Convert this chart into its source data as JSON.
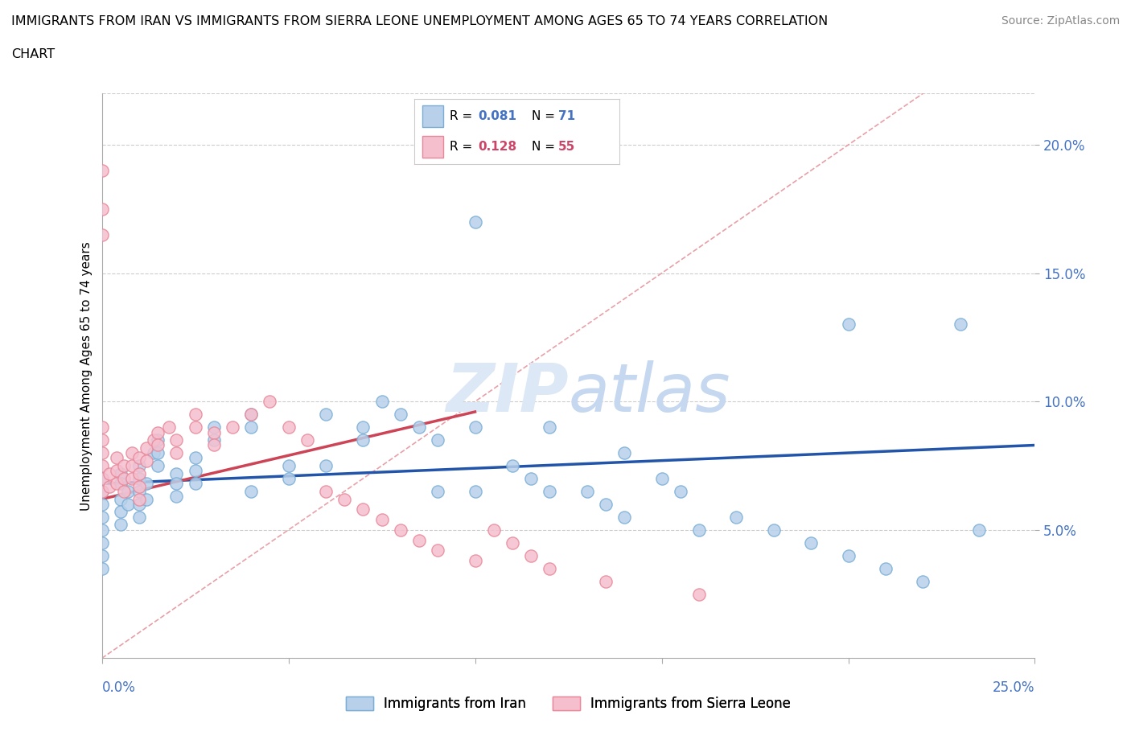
{
  "title_line1": "IMMIGRANTS FROM IRAN VS IMMIGRANTS FROM SIERRA LEONE UNEMPLOYMENT AMONG AGES 65 TO 74 YEARS CORRELATION",
  "title_line2": "CHART",
  "source": "Source: ZipAtlas.com",
  "ylabel": "Unemployment Among Ages 65 to 74 years",
  "xmin": 0.0,
  "xmax": 0.25,
  "ymin": 0.0,
  "ymax": 0.22,
  "yticks": [
    0.05,
    0.1,
    0.15,
    0.2
  ],
  "ytick_labels": [
    "5.0%",
    "10.0%",
    "15.0%",
    "20.0%"
  ],
  "xticks": [
    0.0,
    0.05,
    0.1,
    0.15,
    0.2,
    0.25
  ],
  "watermark": "ZIPatlas",
  "iran_color_face": "#b8d0ea",
  "iran_color_edge": "#7aaed6",
  "sl_color_face": "#f5bfce",
  "sl_color_edge": "#e8889a",
  "iran_line_color": "#2255aa",
  "sl_line_color": "#cc4455",
  "ref_line_color": "#e8a0a8",
  "iran_R": 0.081,
  "iran_N": 71,
  "sl_R": 0.128,
  "sl_N": 55,
  "iran_R_color": "#4472c4",
  "iran_N_color": "#4472c4",
  "sl_R_color": "#cc4466",
  "sl_N_color": "#cc4466",
  "iran_trend_x0": 0.0,
  "iran_trend_x1": 0.25,
  "iran_trend_y0": 0.068,
  "iran_trend_y1": 0.083,
  "sl_trend_x0": 0.0,
  "sl_trend_x1": 0.1,
  "sl_trend_y0": 0.062,
  "sl_trend_y1": 0.096,
  "iran_x": [
    0.0,
    0.0,
    0.0,
    0.0,
    0.0,
    0.0,
    0.0,
    0.0,
    0.005,
    0.005,
    0.005,
    0.005,
    0.005,
    0.007,
    0.007,
    0.01,
    0.01,
    0.01,
    0.01,
    0.01,
    0.012,
    0.012,
    0.014,
    0.015,
    0.015,
    0.015,
    0.02,
    0.02,
    0.02,
    0.025,
    0.025,
    0.025,
    0.03,
    0.03,
    0.04,
    0.04,
    0.04,
    0.05,
    0.05,
    0.06,
    0.06,
    0.07,
    0.07,
    0.075,
    0.08,
    0.085,
    0.09,
    0.09,
    0.1,
    0.1,
    0.11,
    0.115,
    0.12,
    0.13,
    0.135,
    0.14,
    0.15,
    0.155,
    0.16,
    0.17,
    0.18,
    0.19,
    0.2,
    0.21,
    0.22,
    0.23,
    0.235,
    0.1,
    0.12,
    0.14,
    0.2
  ],
  "iran_y": [
    0.07,
    0.065,
    0.06,
    0.055,
    0.05,
    0.045,
    0.04,
    0.035,
    0.072,
    0.068,
    0.062,
    0.057,
    0.052,
    0.065,
    0.06,
    0.075,
    0.07,
    0.065,
    0.06,
    0.055,
    0.068,
    0.062,
    0.08,
    0.085,
    0.08,
    0.075,
    0.072,
    0.068,
    0.063,
    0.078,
    0.073,
    0.068,
    0.09,
    0.085,
    0.095,
    0.09,
    0.065,
    0.075,
    0.07,
    0.095,
    0.075,
    0.09,
    0.085,
    0.1,
    0.095,
    0.09,
    0.085,
    0.065,
    0.09,
    0.065,
    0.075,
    0.07,
    0.065,
    0.065,
    0.06,
    0.055,
    0.07,
    0.065,
    0.05,
    0.055,
    0.05,
    0.045,
    0.04,
    0.035,
    0.03,
    0.13,
    0.05,
    0.17,
    0.09,
    0.08,
    0.13
  ],
  "sl_x": [
    0.0,
    0.0,
    0.0,
    0.0,
    0.0,
    0.0,
    0.0,
    0.0,
    0.0,
    0.002,
    0.002,
    0.004,
    0.004,
    0.004,
    0.006,
    0.006,
    0.006,
    0.008,
    0.008,
    0.008,
    0.01,
    0.01,
    0.01,
    0.01,
    0.012,
    0.012,
    0.014,
    0.015,
    0.015,
    0.018,
    0.02,
    0.02,
    0.025,
    0.025,
    0.03,
    0.03,
    0.035,
    0.04,
    0.045,
    0.05,
    0.055,
    0.06,
    0.065,
    0.07,
    0.075,
    0.08,
    0.085,
    0.09,
    0.1,
    0.105,
    0.11,
    0.115,
    0.12,
    0.135,
    0.16
  ],
  "sl_y": [
    0.065,
    0.07,
    0.075,
    0.08,
    0.085,
    0.09,
    0.19,
    0.175,
    0.165,
    0.072,
    0.067,
    0.078,
    0.073,
    0.068,
    0.075,
    0.07,
    0.065,
    0.08,
    0.075,
    0.07,
    0.078,
    0.072,
    0.067,
    0.062,
    0.082,
    0.077,
    0.085,
    0.088,
    0.083,
    0.09,
    0.085,
    0.08,
    0.095,
    0.09,
    0.088,
    0.083,
    0.09,
    0.095,
    0.1,
    0.09,
    0.085,
    0.065,
    0.062,
    0.058,
    0.054,
    0.05,
    0.046,
    0.042,
    0.038,
    0.05,
    0.045,
    0.04,
    0.035,
    0.03,
    0.025
  ]
}
